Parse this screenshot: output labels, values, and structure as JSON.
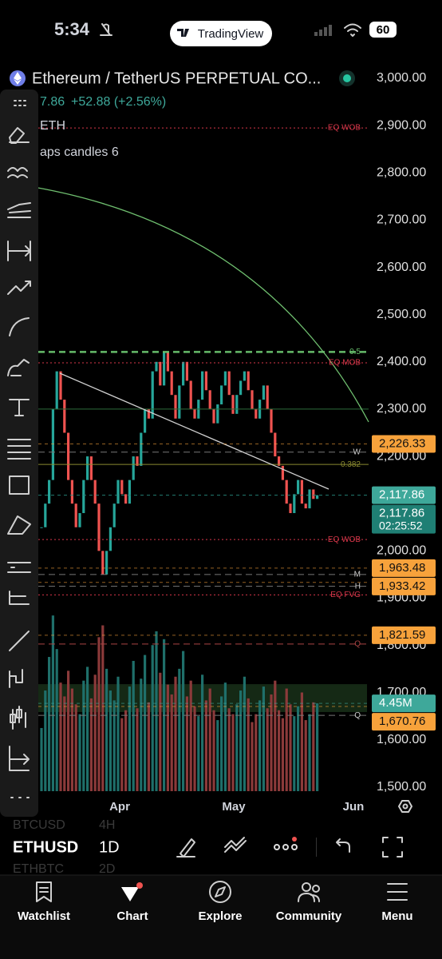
{
  "status_bar": {
    "time": "5:34",
    "app_pill": "TradingView",
    "battery": "60"
  },
  "header": {
    "symbol": "Ethereum / TetherUS PERPETUAL CO...",
    "price_partial": "7.86",
    "price_change": "+52.88 (+2.56%)",
    "line2": "ETH",
    "line3": "aps candles 6"
  },
  "price_axis": {
    "ylim": [
      1500,
      3000
    ],
    "ticks": [
      {
        "value": 3000,
        "label": "3,000.00"
      },
      {
        "value": 2900,
        "label": "2,900.00"
      },
      {
        "value": 2800,
        "label": "2,800.00"
      },
      {
        "value": 2700,
        "label": "2,700.00"
      },
      {
        "value": 2600,
        "label": "2,600.00"
      },
      {
        "value": 2500,
        "label": "2,500.00"
      },
      {
        "value": 2400,
        "label": "2,400.00"
      },
      {
        "value": 2300,
        "label": "2,300.00"
      },
      {
        "value": 2200,
        "label": "2,200.00"
      },
      {
        "value": 2000,
        "label": "2,000.00"
      },
      {
        "value": 1900,
        "label": "1,900.00"
      },
      {
        "value": 1800,
        "label": "1,800.00"
      },
      {
        "value": 1700,
        "label": "1,700.00"
      },
      {
        "value": 1600,
        "label": "1,600.00"
      },
      {
        "value": 1500,
        "label": "1,500.00"
      }
    ]
  },
  "price_tags": [
    {
      "value": 2226.33,
      "label": "2,226.33",
      "color": "#f7a23b"
    },
    {
      "value": 2117.86,
      "label": "2,117.86",
      "color": "#3ea89a"
    },
    {
      "value": 2117.86,
      "label": "2,117.86",
      "sub": "02:25:52",
      "color": "#1f7f74"
    },
    {
      "value": 1963.48,
      "label": "1,963.48",
      "color": "#f7a23b"
    },
    {
      "value": 1933.42,
      "label": "1,933.42",
      "color": "#f7a23b"
    },
    {
      "value": 1821.59,
      "label": "1,821.59",
      "color": "#f7a23b"
    },
    {
      "value": 1670.76,
      "label": "1,670.76",
      "color": "#f7a23b"
    }
  ],
  "volume_tag": {
    "value": 4.45,
    "label": "4.45M",
    "color": "#3ea89a"
  },
  "levels": [
    {
      "value": 2895,
      "label": "EQ WOB",
      "color": "#d8374a",
      "style": "dot"
    },
    {
      "value": 2421,
      "label": "0.5",
      "color": "#66bb6a",
      "style": "dash"
    },
    {
      "value": 2398,
      "label": "EQ MOB",
      "color": "#d8374a",
      "style": "dot"
    },
    {
      "value": 2300,
      "color": "#2e6b3a",
      "style": "solid"
    },
    {
      "value": 2209,
      "label": "W",
      "color": "#777777",
      "style": "dash"
    },
    {
      "value": 2183,
      "label": "0.382",
      "color": "#8a8a30",
      "style": "solid"
    },
    {
      "value": 2024,
      "label": "EQ WOB",
      "color": "#d8374a",
      "style": "dot"
    },
    {
      "value": 1950,
      "label": "M",
      "color": "#777777",
      "style": "dash"
    },
    {
      "value": 1925,
      "label": "H",
      "color": "#777777",
      "style": "dash"
    },
    {
      "value": 1907,
      "label": "EQ FVG",
      "color": "#d8374a",
      "style": "dot"
    },
    {
      "value": 1803,
      "label": "Q",
      "color": "#aa4444",
      "style": "dash"
    },
    {
      "value": 1652,
      "label": "Q",
      "color": "#777777",
      "style": "dash"
    }
  ],
  "zones": [
    {
      "from": 1659,
      "to": 1718
    }
  ],
  "candles": {
    "closes": [
      2050,
      2100,
      2150,
      2300,
      2380,
      2320,
      2250,
      2150,
      2100,
      2050,
      2080,
      2150,
      2200,
      2150,
      2100,
      2000,
      1950,
      2000,
      2050,
      2100,
      2150,
      2120,
      2100,
      2150,
      2200,
      2180,
      2250,
      2300,
      2280,
      2380,
      2400,
      2350,
      2420,
      2380,
      2330,
      2280,
      2350,
      2400,
      2360,
      2300,
      2280,
      2320,
      2380,
      2340,
      2300,
      2270,
      2310,
      2350,
      2380,
      2330,
      2290,
      2330,
      2360,
      2380,
      2340,
      2300,
      2280,
      2320,
      2350,
      2300,
      2250,
      2200,
      2180,
      2150,
      2100,
      2080,
      2120,
      2150,
      2100,
      2090,
      2130,
      2110,
      2117.86
    ],
    "volumes": [
      3.2,
      5.1,
      6.8,
      8.9,
      7.2,
      5.5,
      4.8,
      6.1,
      5.2,
      4.4,
      3.9,
      5.6,
      6.3,
      4.7,
      5.9,
      7.8,
      8.4,
      6.2,
      5.1,
      4.6,
      5.8,
      3.7,
      4.1,
      5.3,
      6.6,
      4.2,
      5.7,
      6.9,
      4.5,
      7.4,
      8.1,
      6.0,
      7.7,
      5.4,
      4.9,
      5.8,
      6.2,
      7.1,
      4.8,
      5.6,
      4.3,
      3.8,
      5.9,
      4.6,
      5.2,
      4.1,
      3.6,
      4.8,
      5.5,
      4.2,
      3.9,
      4.4,
      5.1,
      5.8,
      4.7,
      3.5,
      3.9,
      4.6,
      5.3,
      4.2,
      4.9,
      5.6,
      4.1,
      3.7,
      5.2,
      4.4,
      3.8,
      4.3,
      5.0,
      3.6,
      3.9,
      4.5,
      4.45
    ]
  },
  "time_axis": [
    "Apr",
    "May",
    "Jun"
  ],
  "symbols": {
    "other1": "BTCUSD",
    "other1_tf": "4H",
    "current": "ETHUSD",
    "current_tf": "1D",
    "other2": "ETHBTC",
    "other2_tf": "2D"
  },
  "nav": [
    "Watchlist",
    "Chart",
    "Explore",
    "Community",
    "Menu"
  ]
}
